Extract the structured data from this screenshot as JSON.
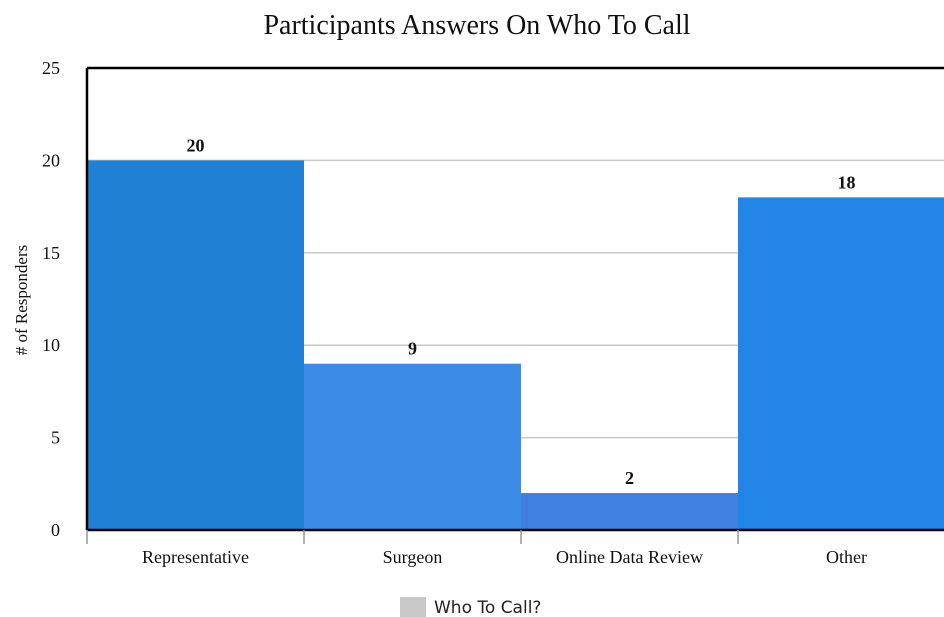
{
  "chart_data": {
    "type": "bar",
    "title": "Participants Answers On Who To Call",
    "xlabel": "",
    "ylabel": "# of Responders",
    "ylim": [
      0,
      25
    ],
    "yticks": [
      0,
      5,
      10,
      15,
      20,
      25
    ],
    "grid": true,
    "legend_position": "bottom",
    "categories": [
      "Representative",
      "Surgeon",
      "Online Data Review",
      "Other"
    ],
    "series": [
      {
        "name": "Who To Call?",
        "values": [
          20,
          9,
          2,
          18
        ],
        "data_labels": [
          "20",
          "9",
          "2",
          "18"
        ]
      }
    ],
    "bar_colors": [
      "#2080d4",
      "#3a8ae6",
      "#3f80e0",
      "#2184e6"
    ],
    "legend_swatch_color": "#c8c8c8",
    "grid_color": "#c8c8c8",
    "axis_color": "#000000"
  }
}
